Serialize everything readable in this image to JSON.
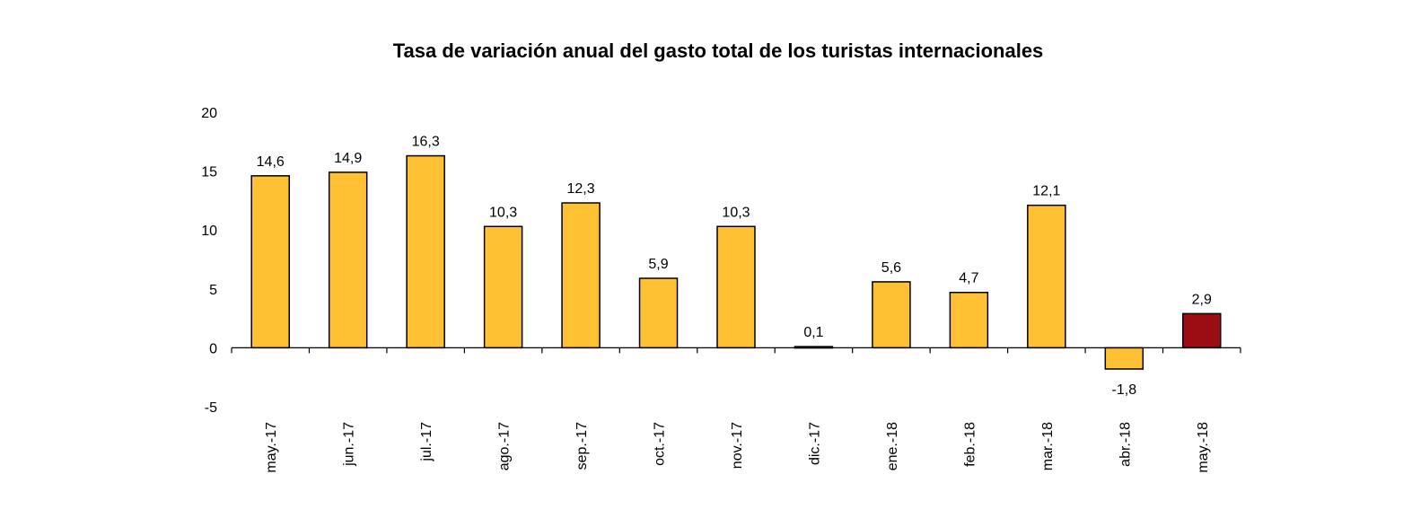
{
  "chart_data": {
    "type": "bar",
    "title": "Tasa de variación anual del gasto total de los turistas internacionales",
    "xlabel": "",
    "ylabel": "",
    "ylim": [
      -5,
      20
    ],
    "yticks": [
      20,
      15,
      10,
      5,
      0,
      -5
    ],
    "grid": false,
    "legend": "none",
    "categories": [
      "may.-17",
      "jun.-17",
      "jul.-17",
      "ago.-17",
      "sep.-17",
      "oct.-17",
      "nov.-17",
      "dic.-17",
      "ene.-18",
      "feb.-18",
      "mar.-18",
      "abr.-18",
      "may.-18"
    ],
    "values": [
      14.6,
      14.9,
      16.3,
      10.3,
      12.3,
      5.9,
      10.3,
      0.1,
      5.6,
      4.7,
      12.1,
      -1.8,
      2.9
    ],
    "value_labels": [
      "14,6",
      "14,9",
      "16,3",
      "10,3",
      "12,3",
      "5,9",
      "10,3",
      "0,1",
      "5,6",
      "4,7",
      "12,1",
      "-1,8",
      "2,9"
    ],
    "colors": {
      "bar": "#FFC133",
      "highlight": "#9B0D12",
      "stroke": "#000000"
    },
    "highlight_index": 12
  }
}
